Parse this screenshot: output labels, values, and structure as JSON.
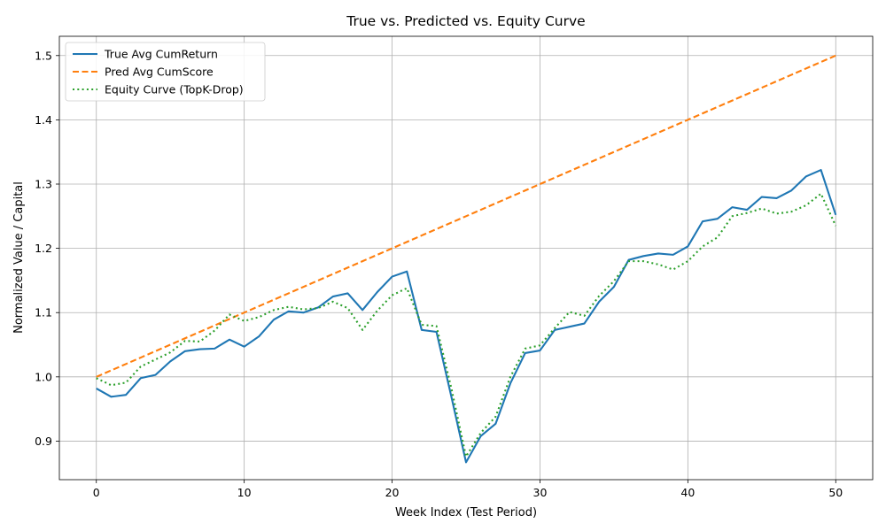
{
  "chart_data": {
    "type": "line",
    "title": "True vs. Predicted vs. Equity Curve",
    "xlabel": "Week Index (Test Period)",
    "ylabel": "Normalized Value / Capital",
    "xlim": [
      -2.5,
      52.5
    ],
    "ylim": [
      0.84,
      1.53
    ],
    "xticks": [
      0,
      10,
      20,
      30,
      40,
      50
    ],
    "yticks": [
      0.9,
      1.0,
      1.1,
      1.2,
      1.3,
      1.4,
      1.5
    ],
    "xtick_labels": [
      "0",
      "10",
      "20",
      "30",
      "40",
      "50"
    ],
    "ytick_labels": [
      "0.9",
      "1.0",
      "1.1",
      "1.2",
      "1.3",
      "1.4",
      "1.5"
    ],
    "grid": true,
    "legend_position": "top-left",
    "x": [
      0,
      1,
      2,
      3,
      4,
      5,
      6,
      7,
      8,
      9,
      10,
      11,
      12,
      13,
      14,
      15,
      16,
      17,
      18,
      19,
      20,
      21,
      22,
      23,
      24,
      25,
      26,
      27,
      28,
      29,
      30,
      31,
      32,
      33,
      34,
      35,
      36,
      37,
      38,
      39,
      40,
      41,
      42,
      43,
      44,
      45,
      46,
      47,
      48,
      49,
      50
    ],
    "series": [
      {
        "name": "True Avg CumReturn",
        "color": "#1f77b4",
        "style": "solid",
        "values": [
          0.982,
          0.969,
          0.972,
          0.998,
          1.003,
          1.024,
          1.04,
          1.043,
          1.044,
          1.058,
          1.047,
          1.063,
          1.089,
          1.102,
          1.1,
          1.108,
          1.125,
          1.13,
          1.104,
          1.132,
          1.156,
          1.164,
          1.073,
          1.07,
          0.97,
          0.867,
          0.908,
          0.927,
          0.99,
          1.037,
          1.041,
          1.073,
          1.078,
          1.083,
          1.117,
          1.14,
          1.182,
          1.188,
          1.192,
          1.19,
          1.203,
          1.242,
          1.246,
          1.264,
          1.26,
          1.28,
          1.278,
          1.29,
          1.312,
          1.322,
          1.252
        ]
      },
      {
        "name": "Pred Avg CumScore",
        "color": "#ff7f0e",
        "style": "dashed",
        "values": [
          1.0,
          1.01,
          1.02,
          1.03,
          1.04,
          1.05,
          1.06,
          1.07,
          1.08,
          1.09,
          1.1,
          1.11,
          1.12,
          1.13,
          1.14,
          1.15,
          1.16,
          1.17,
          1.18,
          1.19,
          1.2,
          1.21,
          1.22,
          1.23,
          1.24,
          1.25,
          1.26,
          1.27,
          1.28,
          1.29,
          1.3,
          1.31,
          1.32,
          1.33,
          1.34,
          1.35,
          1.36,
          1.37,
          1.38,
          1.39,
          1.4,
          1.41,
          1.42,
          1.43,
          1.44,
          1.45,
          1.46,
          1.47,
          1.48,
          1.49,
          1.5
        ]
      },
      {
        "name": "Equity Curve (TopK-Drop)",
        "color": "#2ca02c",
        "style": "dotted",
        "values": [
          0.998,
          0.987,
          0.991,
          1.016,
          1.027,
          1.038,
          1.056,
          1.055,
          1.072,
          1.097,
          1.087,
          1.093,
          1.104,
          1.109,
          1.105,
          1.107,
          1.117,
          1.107,
          1.073,
          1.103,
          1.127,
          1.138,
          1.081,
          1.079,
          0.983,
          0.876,
          0.913,
          0.938,
          1.0,
          1.044,
          1.049,
          1.076,
          1.101,
          1.095,
          1.126,
          1.149,
          1.18,
          1.18,
          1.175,
          1.167,
          1.18,
          1.203,
          1.217,
          1.25,
          1.255,
          1.262,
          1.254,
          1.257,
          1.267,
          1.285,
          1.235
        ]
      }
    ]
  }
}
